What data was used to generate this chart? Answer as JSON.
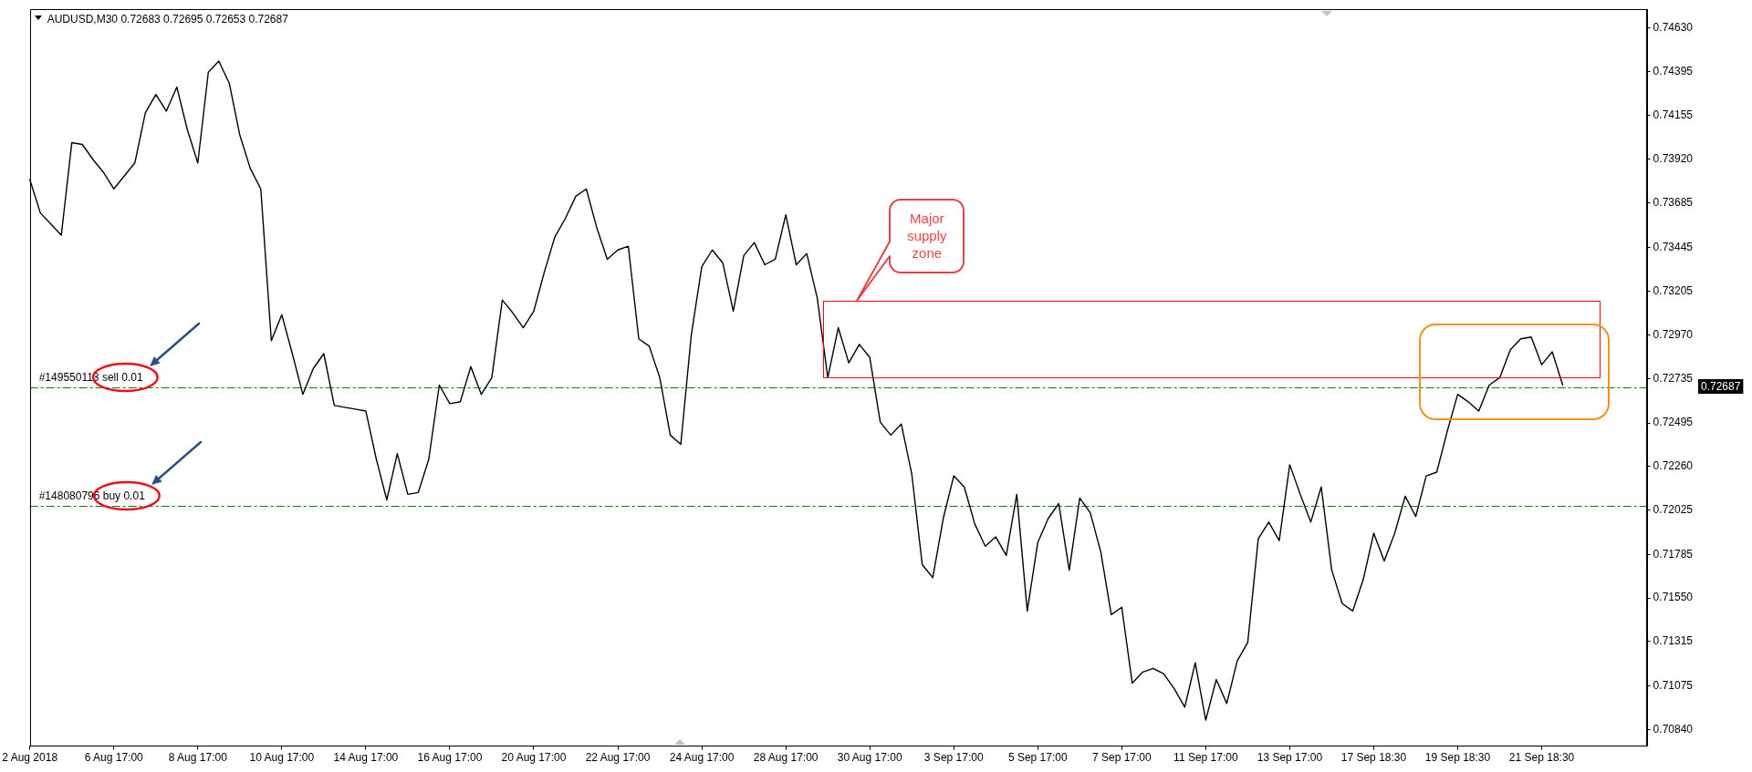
{
  "chart_data": {
    "type": "line",
    "title": "AUDUSD,M30 0.72683 0.72695 0.72653 0.72687",
    "categories": [
      "2 Aug 2018",
      null,
      null,
      null,
      null,
      null,
      null,
      null,
      "6 Aug 17:00",
      null,
      null,
      null,
      null,
      null,
      null,
      null,
      "8 Aug 17:00",
      null,
      null,
      null,
      null,
      null,
      null,
      null,
      "10 Aug 17:00",
      null,
      null,
      null,
      null,
      null,
      null,
      null,
      "14 Aug 17:00",
      null,
      null,
      null,
      null,
      null,
      null,
      null,
      "16 Aug 17:00",
      null,
      null,
      null,
      null,
      null,
      null,
      null,
      "20 Aug 17:00",
      null,
      null,
      null,
      null,
      null,
      null,
      null,
      "22 Aug 17:00",
      null,
      null,
      null,
      null,
      null,
      null,
      null,
      "24 Aug 17:00",
      null,
      null,
      null,
      null,
      null,
      null,
      null,
      "28 Aug 17:00",
      null,
      null,
      null,
      null,
      null,
      null,
      null,
      "30 Aug 17:00",
      null,
      null,
      null,
      null,
      null,
      null,
      null,
      "3 Sep 17:00",
      null,
      null,
      null,
      null,
      null,
      null,
      null,
      "5 Sep 17:00",
      null,
      null,
      null,
      null,
      null,
      null,
      null,
      "7 Sep 17:00",
      null,
      null,
      null,
      null,
      null,
      null,
      null,
      "11 Sep 17:00",
      null,
      null,
      null,
      null,
      null,
      null,
      null,
      "13 Sep 17:00",
      null,
      null,
      null,
      null,
      null,
      null,
      null,
      "17 Sep 18:30",
      null,
      null,
      null,
      null,
      null,
      null,
      null,
      "19 Sep 18:30",
      null,
      null,
      null,
      null,
      null,
      null,
      null,
      "21 Sep 18:30",
      null,
      null,
      null,
      null,
      null,
      null,
      null,
      null,
      null,
      null
    ],
    "values": [
      0.7381,
      0.7363,
      0.7357,
      0.7351,
      0.7401,
      0.74,
      0.7392,
      0.7385,
      0.7376,
      0.7383,
      0.739,
      0.7417,
      0.7427,
      0.7418,
      0.7431,
      0.7408,
      0.739,
      0.7439,
      0.7445,
      0.7433,
      0.7405,
      0.7387,
      0.7376,
      0.7294,
      0.7308,
      0.7287,
      0.7265,
      0.7279,
      0.7287,
      0.7259,
      0.7258,
      0.7257,
      0.7256,
      0.723,
      0.7208,
      0.7233,
      0.7211,
      0.7212,
      0.723,
      0.727,
      0.726,
      0.7261,
      0.728,
      0.7265,
      0.7274,
      0.7316,
      0.7309,
      0.7301,
      0.731,
      0.7331,
      0.735,
      0.736,
      0.7372,
      0.7376,
      0.7355,
      0.7338,
      0.7343,
      0.7345,
      0.7295,
      0.7291,
      0.7274,
      0.7243,
      0.7238,
      0.7297,
      0.7334,
      0.7343,
      0.7336,
      0.731,
      0.734,
      0.7347,
      0.7335,
      0.7338,
      0.7362,
      0.7335,
      0.7341,
      0.7317,
      0.7274,
      0.7301,
      0.7282,
      0.7292,
      0.7285,
      0.725,
      0.7243,
      0.7249,
      0.7222,
      0.7173,
      0.7166,
      0.7198,
      0.7221,
      0.7215,
      0.7195,
      0.7183,
      0.7188,
      0.7178,
      0.7211,
      0.7148,
      0.7185,
      0.7198,
      0.7206,
      0.717,
      0.7209,
      0.7201,
      0.718,
      0.7146,
      0.715,
      0.7109,
      0.7115,
      0.7117,
      0.7114,
      0.7106,
      0.7096,
      0.712,
      0.7089,
      0.7111,
      0.7098,
      0.7121,
      0.7131,
      0.7187,
      0.7196,
      0.7186,
      0.7227,
      0.7211,
      0.7196,
      0.7215,
      0.717,
      0.7152,
      0.7148,
      0.7165,
      0.719,
      0.7175,
      0.719,
      0.721,
      0.7199,
      0.7221,
      0.7223,
      0.7245,
      0.7265,
      0.7261,
      0.7256,
      0.727,
      0.7274,
      0.7289,
      0.7295,
      0.7296,
      0.7281,
      0.7288,
      0.727,
      null,
      null,
      null,
      null,
      null,
      null,
      null,
      null
    ],
    "color": "#000000",
    "ylim": [
      0.7075,
      0.7473
    ],
    "yticks": [
      {
        "value": 0.7463,
        "label": "0.74630"
      },
      0.74395,
      0.74155,
      {
        "value": 0.7392,
        "label": "0.73920"
      },
      0.73685,
      0.73445,
      0.73205,
      {
        "value": 0.7297,
        "label": "0.72970"
      },
      0.72735,
      0.72495,
      {
        "value": 0.7226,
        "label": "0.72260"
      },
      0.72025,
      0.71785,
      {
        "value": 0.7155,
        "label": "0.71550"
      },
      0.71315,
      0.71075,
      {
        "value": 0.7084,
        "label": "0.70840"
      }
    ],
    "ref_lines": [
      {
        "axis": "y",
        "value": 0.7269,
        "label": "#149550113 sell 0.01",
        "color": "#008000",
        "line_style": "dashed"
      },
      {
        "axis": "y",
        "value": 0.7205,
        "label": "#148080796 buy 0.01",
        "color": "#008000",
        "line_style": "dashed"
      }
    ],
    "annotations": [
      "Major supply zone",
      "0.72687"
    ]
  }
}
